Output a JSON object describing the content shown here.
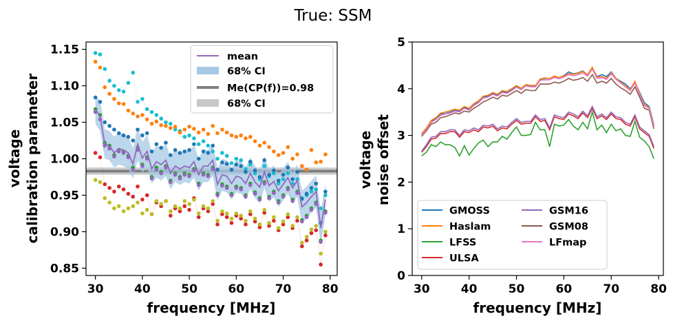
{
  "suptitle": "True: SSM",
  "chart_data": [
    {
      "type": "scatter",
      "xlabel": "frequency [MHz]",
      "ylabel_line1": "voltage",
      "ylabel_line2": "calibration parameter",
      "xlim": [
        28,
        81.5
      ],
      "ylim": [
        0.84,
        1.16
      ],
      "xticks": [
        30,
        40,
        50,
        60,
        70,
        80
      ],
      "yticks": [
        0.85,
        0.9,
        0.95,
        1.0,
        1.05,
        1.1,
        1.15
      ],
      "ytick_labels": [
        "0.85",
        "0.90",
        "0.95",
        "1.00",
        "1.05",
        "1.10",
        "1.15"
      ],
      "grid": false,
      "legend_position": "top-right",
      "legend": {
        "mean": "mean",
        "ci": "68% CI",
        "me": "Me(CP(f))=0.98",
        "me_ci": "68% CI"
      },
      "me_value": 0.983,
      "me_ci": [
        0.978,
        0.988
      ],
      "mean_color": "#9467bd",
      "ci_color": "#a6c8e4",
      "me_color": "#7f7f7f",
      "me_ci_color": "#c8c8c8",
      "x": [
        30,
        31,
        32,
        33,
        34,
        35,
        36,
        37,
        38,
        39,
        40,
        41,
        42,
        43,
        44,
        45,
        46,
        47,
        48,
        49,
        50,
        51,
        52,
        53,
        54,
        55,
        56,
        57,
        58,
        59,
        60,
        61,
        62,
        63,
        64,
        65,
        66,
        67,
        68,
        69,
        70,
        71,
        72,
        73,
        74,
        75,
        76,
        77,
        78,
        79
      ],
      "mean": [
        1.068,
        1.058,
        1.02,
        1.018,
        1.008,
        1.014,
        1.012,
        1.008,
        0.993,
        1.02,
        1.001,
        1.01,
        0.986,
        0.996,
        0.992,
        0.998,
        0.98,
        0.99,
        0.986,
        0.99,
        0.988,
        0.996,
        0.978,
        0.99,
        0.99,
        0.998,
        0.965,
        0.978,
        0.976,
        0.966,
        0.976,
        0.974,
        0.966,
        0.98,
        0.968,
        0.961,
        0.982,
        0.963,
        0.969,
        0.956,
        0.965,
        0.974,
        0.96,
        0.97,
        0.934,
        0.94,
        0.948,
        0.955,
        0.905,
        0.944
      ],
      "ci_lower": [
        1.048,
        1.038,
        1.0,
        0.998,
        0.988,
        0.992,
        0.99,
        0.986,
        0.973,
        0.998,
        0.981,
        0.988,
        0.966,
        0.974,
        0.97,
        0.976,
        0.958,
        0.968,
        0.964,
        0.968,
        0.966,
        0.974,
        0.956,
        0.968,
        0.968,
        0.976,
        0.943,
        0.956,
        0.954,
        0.944,
        0.954,
        0.952,
        0.944,
        0.958,
        0.946,
        0.939,
        0.96,
        0.941,
        0.947,
        0.934,
        0.943,
        0.952,
        0.938,
        0.948,
        0.912,
        0.918,
        0.926,
        0.933,
        0.883,
        0.922
      ],
      "ci_upper": [
        1.088,
        1.078,
        1.04,
        1.038,
        1.03,
        1.036,
        1.034,
        1.03,
        1.015,
        1.042,
        1.023,
        1.032,
        1.008,
        1.018,
        1.014,
        1.02,
        1.002,
        1.012,
        1.008,
        1.012,
        1.01,
        1.018,
        1.0,
        1.012,
        1.012,
        1.02,
        0.987,
        1.0,
        0.998,
        0.988,
        0.998,
        0.996,
        0.988,
        1.002,
        0.99,
        0.983,
        1.004,
        0.985,
        0.991,
        0.978,
        0.987,
        0.996,
        0.982,
        0.992,
        0.956,
        0.962,
        0.97,
        0.977,
        0.927,
        0.966
      ],
      "series": [
        {
          "color": "#17becf",
          "values": [
            1.145,
            1.143,
            1.123,
            1.107,
            1.1,
            1.094,
            1.092,
            1.104,
            1.118,
            1.078,
            1.082,
            1.068,
            1.064,
            1.06,
            1.055,
            1.05,
            1.048,
            1.04,
            1.038,
            1.03,
            1.032,
            1.028,
            1.02,
            1.024,
            1.018,
            1.01,
            1.0,
            1.008,
            1.004,
            0.994,
            1.0,
            0.998,
            0.986,
            0.992,
            0.98,
            0.972,
            0.99,
            0.976,
            0.98,
            0.966,
            0.972,
            0.98,
            0.966,
            0.972,
            0.946,
            0.95,
            0.955,
            0.958,
            0.932,
            0.95
          ]
        },
        {
          "color": "#ff7f0e",
          "values": [
            1.133,
            1.125,
            1.098,
            1.089,
            1.082,
            1.076,
            1.075,
            1.066,
            1.062,
            1.058,
            1.06,
            1.054,
            1.048,
            1.051,
            1.046,
            1.045,
            1.042,
            1.044,
            1.036,
            1.04,
            1.044,
            1.041,
            1.036,
            1.04,
            1.034,
            1.045,
            1.035,
            1.04,
            1.036,
            1.032,
            1.03,
            1.032,
            1.028,
            1.03,
            1.024,
            1.018,
            1.022,
            1.016,
            1.01,
            1.005,
            1.008,
            1.016,
            1.0,
            1.006,
            0.99,
            0.985,
            1.012,
            0.995,
            0.996,
            1.006
          ]
        },
        {
          "color": "#1f77b4",
          "values": [
            1.084,
            1.078,
            1.05,
            1.045,
            1.04,
            1.035,
            1.032,
            1.03,
            1.025,
            1.04,
            1.032,
            1.035,
            1.01,
            1.02,
            1.015,
            1.022,
            1.005,
            1.012,
            1.008,
            1.01,
            1.012,
            1.02,
            1.0,
            1.01,
            1.008,
            1.018,
            0.985,
            0.995,
            0.993,
            0.985,
            0.992,
            0.99,
            0.982,
            0.996,
            0.984,
            0.975,
            0.998,
            0.978,
            0.984,
            0.97,
            0.978,
            0.988,
            0.972,
            0.982,
            0.945,
            0.952,
            0.96,
            0.966,
            0.912,
            0.955
          ]
        },
        {
          "color": "#2ca02c",
          "values": [
            1.068,
            1.06,
            1.022,
            1.018,
            1.005,
            1.012,
            1.01,
            1.004,
            0.988,
            1.015,
            0.992,
            1.002,
            0.975,
            0.988,
            0.982,
            0.99,
            0.97,
            0.98,
            0.975,
            0.98,
            0.978,
            0.986,
            0.966,
            0.98,
            0.978,
            0.988,
            0.952,
            0.965,
            0.962,
            0.952,
            0.962,
            0.96,
            0.95,
            0.966,
            0.954,
            0.946,
            0.968,
            0.948,
            0.955,
            0.942,
            0.95,
            0.96,
            0.944,
            0.955,
            0.916,
            0.922,
            0.932,
            0.94,
            0.888,
            0.928
          ]
        },
        {
          "color": "#9467bd",
          "values": [
            1.064,
            1.054,
            1.018,
            1.014,
            1.003,
            1.01,
            1.008,
            1.002,
            0.985,
            1.012,
            0.99,
            1.0,
            0.973,
            0.985,
            0.98,
            0.988,
            0.968,
            0.978,
            0.973,
            0.978,
            0.976,
            0.984,
            0.964,
            0.978,
            0.976,
            0.986,
            0.95,
            0.963,
            0.96,
            0.95,
            0.96,
            0.958,
            0.948,
            0.964,
            0.952,
            0.944,
            0.966,
            0.946,
            0.953,
            0.94,
            0.948,
            0.958,
            0.942,
            0.953,
            0.914,
            0.92,
            0.93,
            0.938,
            0.886,
            0.926
          ]
        },
        {
          "color": "#d62728",
          "values": [
            1.008,
            1.002,
            0.965,
            0.96,
            0.955,
            0.962,
            0.958,
            0.952,
            0.948,
            0.962,
            0.944,
            0.95,
            0.924,
            0.94,
            0.935,
            0.942,
            0.922,
            0.932,
            0.928,
            0.935,
            0.93,
            0.946,
            0.92,
            0.932,
            0.928,
            0.938,
            0.91,
            0.924,
            0.92,
            0.912,
            0.922,
            0.918,
            0.91,
            0.924,
            0.914,
            0.906,
            0.926,
            0.908,
            0.915,
            0.902,
            0.91,
            0.92,
            0.905,
            0.915,
            0.88,
            0.888,
            0.898,
            0.902,
            0.855,
            0.895
          ]
        },
        {
          "color": "#bcbd22",
          "values": [
            0.971,
            0.968,
            0.946,
            0.94,
            0.932,
            0.935,
            0.928,
            0.932,
            0.935,
            0.94,
            0.925,
            0.93,
            0.924,
            0.942,
            0.938,
            0.942,
            0.928,
            0.935,
            0.932,
            0.942,
            0.938,
            0.944,
            0.925,
            0.935,
            0.932,
            0.942,
            0.915,
            0.928,
            0.925,
            0.918,
            0.925,
            0.922,
            0.915,
            0.928,
            0.918,
            0.91,
            0.93,
            0.912,
            0.92,
            0.905,
            0.914,
            0.924,
            0.908,
            0.92,
            0.885,
            0.893,
            0.903,
            0.908,
            0.87,
            0.9
          ]
        }
      ]
    },
    {
      "type": "line",
      "xlabel": "frequency [MHz]",
      "ylabel_line1": "voltage",
      "ylabel_line2": "noise offset",
      "xlim": [
        28,
        81
      ],
      "ylim": [
        0,
        5
      ],
      "xticks": [
        30,
        40,
        50,
        60,
        70,
        80
      ],
      "yticks": [
        0,
        1,
        2,
        3,
        4,
        5
      ],
      "grid": false,
      "legend_position": "lower-left",
      "x": [
        30,
        31,
        32,
        33,
        34,
        35,
        36,
        37,
        38,
        39,
        40,
        41,
        42,
        43,
        44,
        45,
        46,
        47,
        48,
        49,
        50,
        51,
        52,
        53,
        54,
        55,
        56,
        57,
        58,
        59,
        60,
        61,
        62,
        63,
        64,
        65,
        66,
        67,
        68,
        69,
        70,
        71,
        72,
        73,
        74,
        75,
        76,
        77,
        78,
        79
      ],
      "series": [
        {
          "name": "GMOSS",
          "color": "#1f77b4",
          "values": [
            3.02,
            3.14,
            3.3,
            3.36,
            3.46,
            3.47,
            3.5,
            3.54,
            3.52,
            3.6,
            3.56,
            3.66,
            3.72,
            3.82,
            3.84,
            3.9,
            3.86,
            3.94,
            3.92,
            3.98,
            4.06,
            4.0,
            4.08,
            4.06,
            4.06,
            4.2,
            4.22,
            4.22,
            4.26,
            4.24,
            4.28,
            4.36,
            4.32,
            4.34,
            4.38,
            4.3,
            4.44,
            4.26,
            4.3,
            4.26,
            4.36,
            4.22,
            4.16,
            4.1,
            4.0,
            4.14,
            3.92,
            3.7,
            3.62,
            3.22
          ]
        },
        {
          "name": "Haslam",
          "color": "#ff7f0e",
          "values": [
            3.04,
            3.16,
            3.32,
            3.38,
            3.48,
            3.5,
            3.53,
            3.56,
            3.54,
            3.62,
            3.58,
            3.68,
            3.74,
            3.84,
            3.86,
            3.92,
            3.88,
            3.96,
            3.94,
            4.0,
            4.07,
            4.01,
            4.09,
            4.07,
            4.07,
            4.21,
            4.23,
            4.22,
            4.27,
            4.24,
            4.27,
            4.32,
            4.31,
            4.33,
            4.37,
            4.3,
            4.46,
            4.25,
            4.26,
            4.22,
            4.34,
            4.22,
            4.14,
            4.06,
            3.98,
            4.16,
            3.9,
            3.66,
            3.6,
            3.2
          ]
        },
        {
          "name": "LFSS",
          "color": "#2ca02c",
          "values": [
            2.56,
            2.64,
            2.8,
            2.76,
            2.86,
            2.8,
            2.8,
            2.74,
            2.56,
            2.78,
            2.58,
            2.72,
            2.84,
            2.9,
            2.76,
            2.86,
            2.86,
            2.98,
            2.92,
            3.06,
            3.18,
            3.0,
            3.0,
            3.02,
            3.28,
            3.12,
            3.12,
            2.76,
            3.24,
            3.2,
            3.22,
            3.34,
            3.2,
            3.12,
            3.28,
            3.14,
            3.5,
            3.12,
            3.22,
            3.06,
            3.24,
            3.1,
            3.14,
            3.0,
            2.98,
            3.3,
            2.96,
            2.88,
            2.76,
            2.5
          ]
        },
        {
          "name": "ULSA",
          "color": "#d62728",
          "values": [
            2.64,
            2.76,
            2.92,
            2.94,
            3.04,
            3.04,
            3.08,
            3.08,
            2.96,
            3.08,
            3.06,
            3.12,
            3.08,
            3.18,
            3.16,
            3.2,
            3.1,
            3.16,
            3.14,
            3.24,
            3.32,
            3.24,
            3.26,
            3.26,
            3.4,
            3.3,
            3.32,
            3.12,
            3.4,
            3.36,
            3.34,
            3.46,
            3.42,
            3.36,
            3.48,
            3.38,
            3.58,
            3.36,
            3.42,
            3.34,
            3.46,
            3.36,
            3.34,
            3.24,
            3.2,
            3.4,
            3.14,
            3.06,
            2.98,
            2.72
          ]
        },
        {
          "name": "GSM16",
          "color": "#9467bd",
          "values": [
            2.66,
            2.8,
            2.96,
            2.98,
            3.08,
            3.08,
            3.12,
            3.12,
            3.0,
            3.12,
            3.1,
            3.16,
            3.12,
            3.22,
            3.2,
            3.24,
            3.14,
            3.2,
            3.18,
            3.28,
            3.36,
            3.28,
            3.3,
            3.3,
            3.44,
            3.34,
            3.36,
            3.16,
            3.44,
            3.4,
            3.38,
            3.5,
            3.46,
            3.4,
            3.52,
            3.42,
            3.62,
            3.4,
            3.46,
            3.38,
            3.5,
            3.4,
            3.38,
            3.28,
            3.24,
            3.44,
            3.18,
            3.1,
            3.02,
            2.76
          ]
        },
        {
          "name": "GSM08",
          "color": "#8c564b",
          "values": [
            2.98,
            3.1,
            3.24,
            3.28,
            3.38,
            3.4,
            3.44,
            3.48,
            3.46,
            3.52,
            3.5,
            3.58,
            3.64,
            3.72,
            3.76,
            3.82,
            3.78,
            3.86,
            3.84,
            3.9,
            3.96,
            3.9,
            3.98,
            3.96,
            3.96,
            4.1,
            4.1,
            4.1,
            4.14,
            4.12,
            4.16,
            4.22,
            4.18,
            4.2,
            4.24,
            4.16,
            4.3,
            4.12,
            4.16,
            4.12,
            4.22,
            4.1,
            4.02,
            3.96,
            3.88,
            4.04,
            3.82,
            3.58,
            3.54,
            3.14
          ]
        },
        {
          "name": "LFmap",
          "color": "#e377c2",
          "values": [
            3.0,
            3.13,
            3.28,
            3.34,
            3.43,
            3.46,
            3.48,
            3.52,
            3.5,
            3.58,
            3.54,
            3.64,
            3.7,
            3.8,
            3.82,
            3.88,
            3.84,
            3.92,
            3.9,
            3.96,
            4.03,
            3.98,
            4.06,
            4.04,
            4.04,
            4.18,
            4.19,
            4.19,
            4.24,
            4.21,
            4.25,
            4.3,
            4.28,
            4.3,
            4.34,
            4.27,
            4.42,
            4.22,
            4.24,
            4.2,
            4.32,
            4.2,
            4.12,
            4.04,
            3.96,
            4.12,
            3.88,
            3.64,
            3.58,
            3.18
          ]
        }
      ]
    }
  ]
}
